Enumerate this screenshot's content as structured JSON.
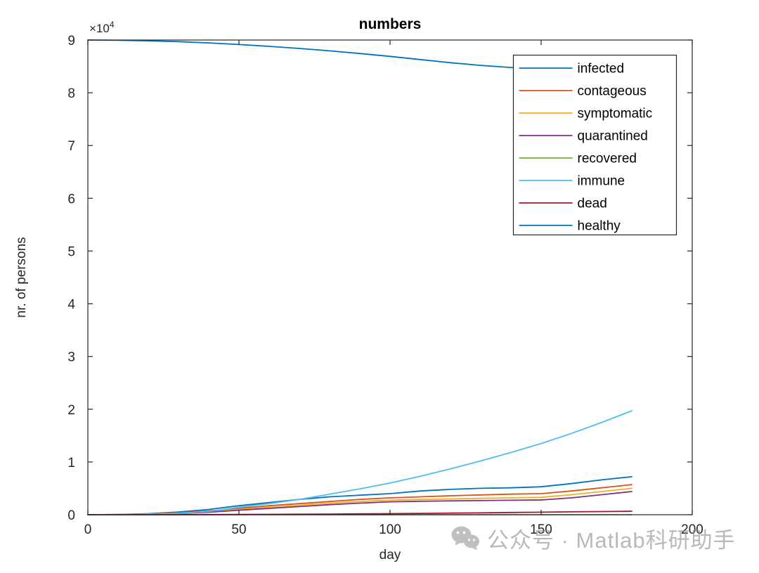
{
  "figure": {
    "background": "#ffffff",
    "axis_color": "#262626",
    "tick_label_color": "#262626"
  },
  "watermark": {
    "icon": "wechat-icon",
    "text": "公众号 · Matlab科研助手",
    "color": "#8f8f8f"
  },
  "chart_data": {
    "type": "line",
    "title": "numbers",
    "xlabel": "day",
    "ylabel": "nr. of persons",
    "y_exponent_base": "×10",
    "y_exponent": "4",
    "xlim": [
      0,
      200
    ],
    "ylim": [
      0,
      90000
    ],
    "grid": false,
    "legend_position": "upper right",
    "xticks": [
      0,
      50,
      100,
      150,
      200
    ],
    "xtick_labels": [
      "0",
      "50",
      "100",
      "150",
      "200"
    ],
    "yticks": [
      0,
      10000,
      20000,
      30000,
      40000,
      50000,
      60000,
      70000,
      80000,
      90000
    ],
    "ytick_labels": [
      "0",
      "1",
      "2",
      "3",
      "4",
      "5",
      "6",
      "7",
      "8",
      "9"
    ],
    "x": [
      0,
      10,
      20,
      30,
      40,
      50,
      60,
      70,
      80,
      90,
      100,
      110,
      120,
      130,
      140,
      150,
      160,
      170,
      180
    ],
    "series": [
      {
        "name": "infected",
        "color": "#0072BD",
        "values": [
          0,
          50,
          200,
          500,
          1000,
          1700,
          2300,
          2900,
          3400,
          3700,
          4000,
          4500,
          4800,
          5000,
          5100,
          5300,
          5900,
          6600,
          7200
        ]
      },
      {
        "name": "contageous",
        "color": "#D95319",
        "values": [
          0,
          30,
          130,
          350,
          700,
          1200,
          1700,
          2100,
          2500,
          2900,
          3200,
          3400,
          3600,
          3750,
          3900,
          4000,
          4500,
          5100,
          5700
        ]
      },
      {
        "name": "symptomatic",
        "color": "#EDB120",
        "values": [
          0,
          20,
          100,
          280,
          580,
          1000,
          1400,
          1800,
          2200,
          2500,
          2750,
          2900,
          3000,
          3100,
          3200,
          3300,
          3800,
          4400,
          5000
        ]
      },
      {
        "name": "quarantined",
        "color": "#7E2F8E",
        "values": [
          0,
          15,
          70,
          220,
          470,
          850,
          1200,
          1550,
          1900,
          2200,
          2450,
          2550,
          2620,
          2680,
          2740,
          2800,
          3200,
          3800,
          4400
        ]
      },
      {
        "name": "recovered",
        "color": "#77AC30",
        "values": [
          0,
          0,
          0,
          0,
          0,
          0,
          0,
          0,
          0,
          0,
          0,
          0,
          0,
          0,
          0,
          0,
          0,
          0,
          0
        ]
      },
      {
        "name": "immune",
        "color": "#4DBEEE",
        "values": [
          0,
          20,
          80,
          250,
          600,
          1400,
          2100,
          2900,
          3900,
          4900,
          6000,
          7300,
          8700,
          10200,
          11800,
          13500,
          15400,
          17500,
          19700
        ]
      },
      {
        "name": "dead",
        "color": "#A2142F",
        "values": [
          0,
          0,
          5,
          10,
          20,
          40,
          60,
          90,
          120,
          160,
          200,
          250,
          300,
          350,
          420,
          480,
          540,
          600,
          660
        ]
      },
      {
        "name": "healthy",
        "color": "#0072BD",
        "values": [
          90000,
          89950,
          89850,
          89700,
          89450,
          89150,
          88800,
          88400,
          87950,
          87450,
          86900,
          86300,
          85700,
          85200,
          84800,
          84500,
          84200,
          83900,
          83600
        ]
      }
    ]
  }
}
